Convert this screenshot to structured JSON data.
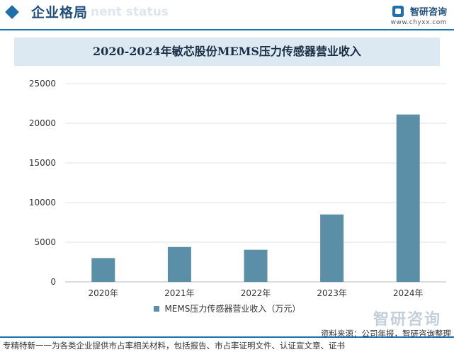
{
  "header": {
    "title": "企业格局",
    "subtitle": "nent status",
    "brand_name": "智研咨询",
    "brand_url": "www.chyxx.com"
  },
  "watermark": "智研咨询",
  "source": "资料来源：公司年报，智研咨询整理",
  "footer": "专精特新一一为各类企业提供市占率相关材料，包括报告、市占率证明文件、认证宣文章、证书",
  "colors": {
    "bar": "#5b8fa8",
    "accent": "#1f6fa8",
    "title_bg": "#dce8f2"
  },
  "chart_data": {
    "type": "bar",
    "title": "2020-2024年敏芯股份MEMS压力传感器营业收入",
    "categories": [
      "2020年",
      "2021年",
      "2022年",
      "2023年",
      "2024年"
    ],
    "series": [
      {
        "name": "MEMS压力传感器营业收入（万元）",
        "values": [
          3000,
          4400,
          4050,
          8500,
          21100
        ]
      }
    ],
    "ylim": [
      0,
      25000
    ],
    "yticks": [
      "25000",
      "20000",
      "15000",
      "10000",
      "5000",
      "0"
    ],
    "grid": true,
    "legend": "bottom"
  }
}
